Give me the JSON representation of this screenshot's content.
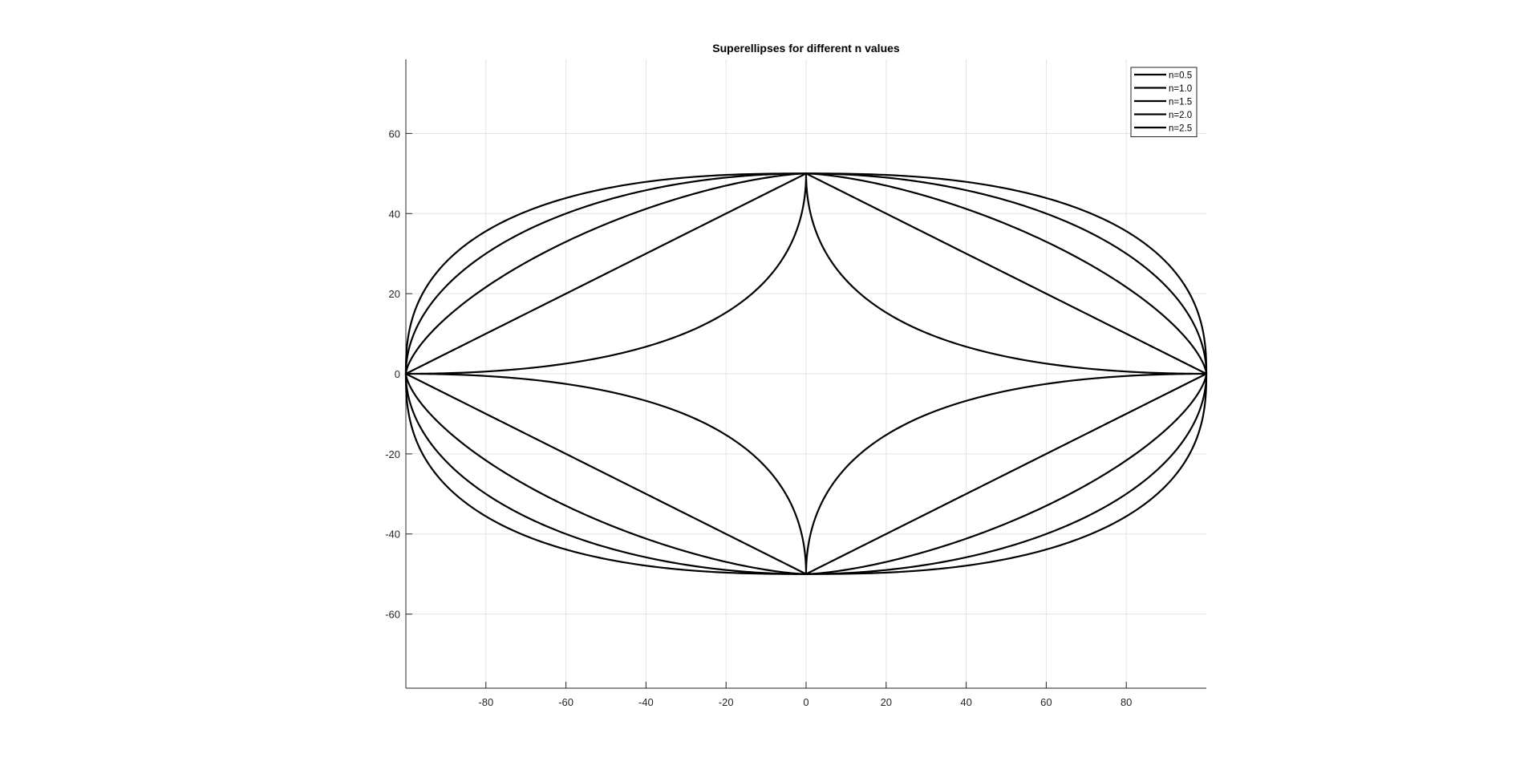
{
  "chart_data": {
    "type": "line",
    "title": "Superellipses for different n values",
    "xlabel": "",
    "ylabel": "",
    "xlim": [
      -100,
      100
    ],
    "ylim": [
      -78.5,
      78.5
    ],
    "xticks": [
      -80,
      -60,
      -40,
      -20,
      0,
      20,
      40,
      60,
      80
    ],
    "yticks": [
      -60,
      -40,
      -20,
      0,
      20,
      40,
      60
    ],
    "grid": true,
    "legend_position": "top-right",
    "line_color": "#000000",
    "semi_axes": {
      "a": 100,
      "b": 50
    },
    "series": [
      {
        "name": "n=0.5",
        "n": 0.5
      },
      {
        "name": "n=1.0",
        "n": 1.0
      },
      {
        "name": "n=1.5",
        "n": 1.5
      },
      {
        "name": "n=2.0",
        "n": 2.0
      },
      {
        "name": "n=2.5",
        "n": 2.5
      }
    ]
  }
}
